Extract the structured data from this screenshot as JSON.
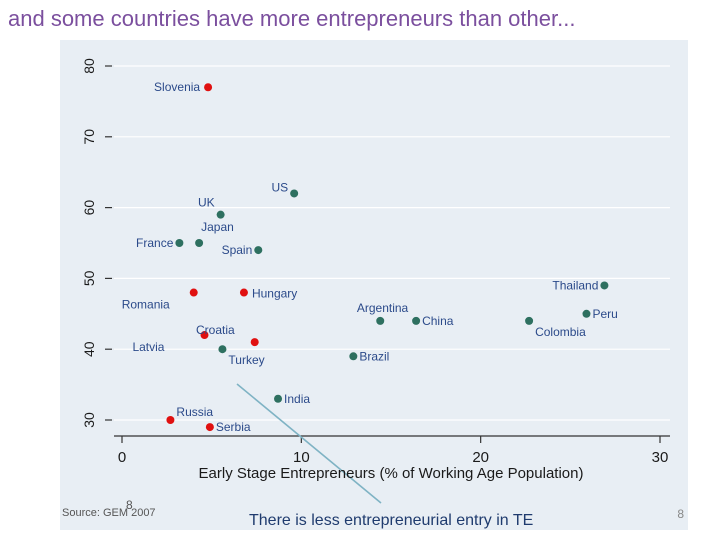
{
  "slide": {
    "title": "and some countries have more entrepreneurs than other...",
    "source": "Source: GEM 2007",
    "source_overlay_number": "8",
    "footnote": "There is less entrepreneurial entry in TE",
    "page_number": "8"
  },
  "colors": {
    "title": "#7b4f9e",
    "plot_bg": "#e8eef4",
    "red_group": "#e01010",
    "green_group": "#2e7060",
    "label": "#2b4a8a",
    "arrow": "#7fb3c4"
  },
  "chart_data": {
    "type": "scatter",
    "title": "",
    "xlabel": "Early Stage Entrepreneurs (% of Working Age Population)",
    "ylabel": "",
    "xlim": [
      0,
      30
    ],
    "ylim": [
      27,
      82
    ],
    "xticks": [
      0,
      10,
      20,
      30
    ],
    "yticks": [
      30,
      40,
      50,
      60,
      70,
      80
    ],
    "grid": "horizontal",
    "series": [
      {
        "color": "#e01010",
        "points": [
          {
            "label": "Slovenia",
            "x": 4.8,
            "y": 77
          },
          {
            "label": "Romania",
            "x": 4.0,
            "y": 48
          },
          {
            "label": "Hungary",
            "x": 6.8,
            "y": 48
          },
          {
            "label": "Latvia",
            "x": 4.6,
            "y": 42
          },
          {
            "label": "Croatia",
            "x": 7.4,
            "y": 41
          },
          {
            "label": "Russia",
            "x": 2.7,
            "y": 30
          },
          {
            "label": "Serbia",
            "x": 4.9,
            "y": 29
          }
        ]
      },
      {
        "color": "#2e7060",
        "points": [
          {
            "label": "US",
            "x": 9.6,
            "y": 62
          },
          {
            "label": "UK",
            "x": 5.5,
            "y": 59
          },
          {
            "label": "France",
            "x": 3.2,
            "y": 55
          },
          {
            "label": "Japan",
            "x": 4.3,
            "y": 55
          },
          {
            "label": "Spain",
            "x": 7.6,
            "y": 54
          },
          {
            "label": "Thailand",
            "x": 26.9,
            "y": 49
          },
          {
            "label": "Peru",
            "x": 25.9,
            "y": 45
          },
          {
            "label": "Argentina",
            "x": 14.4,
            "y": 44
          },
          {
            "label": "China",
            "x": 16.4,
            "y": 44
          },
          {
            "label": "Colombia",
            "x": 22.7,
            "y": 44
          },
          {
            "label": "Turkey",
            "x": 5.6,
            "y": 40
          },
          {
            "label": "Brazil",
            "x": 12.9,
            "y": 39
          },
          {
            "label": "India",
            "x": 8.7,
            "y": 33
          }
        ]
      }
    ]
  }
}
